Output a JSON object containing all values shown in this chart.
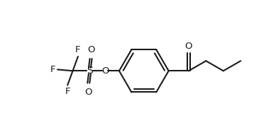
{
  "bg_color": "#ffffff",
  "line_color": "#1a1a1a",
  "line_width": 1.5,
  "fig_width": 3.89,
  "fig_height": 1.84,
  "dpi": 100,
  "font_size": 9.5,
  "xlim": [
    0.0,
    9.5
  ],
  "ylim": [
    1.0,
    6.5
  ]
}
